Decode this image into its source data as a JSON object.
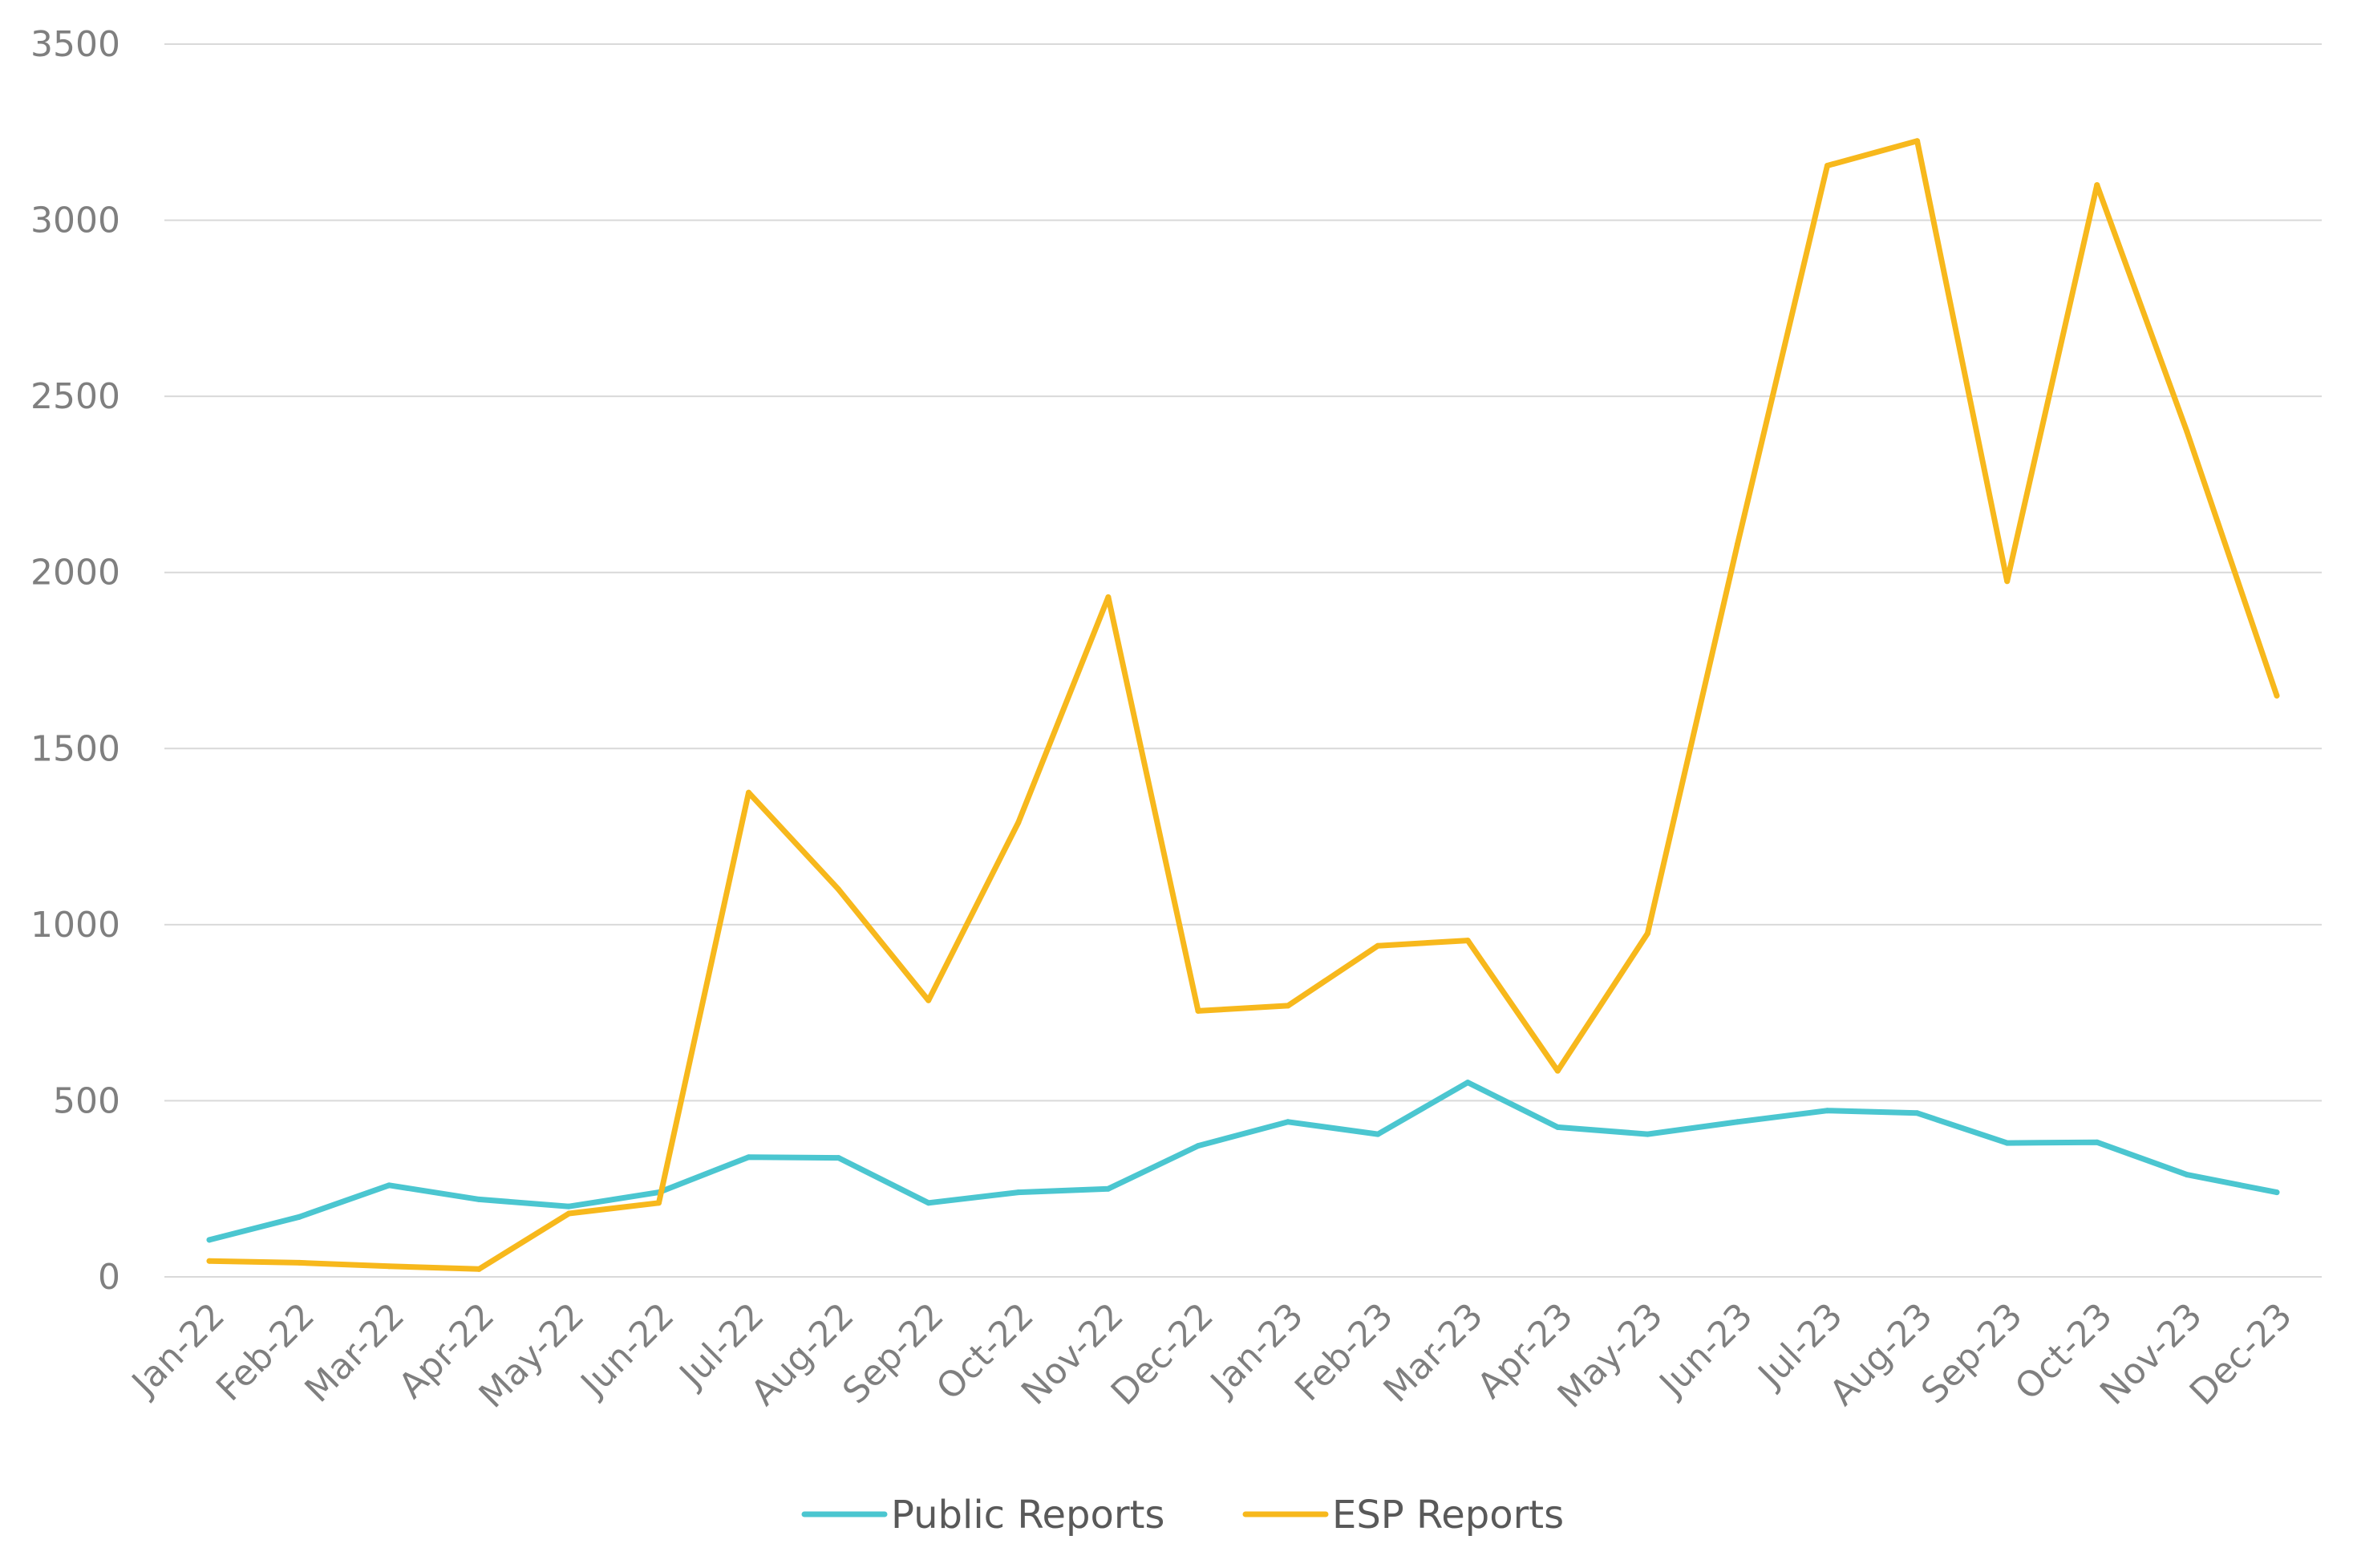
{
  "chart_data": {
    "type": "line",
    "title": "",
    "xlabel": "",
    "ylabel": "",
    "ylim": [
      0,
      3500
    ],
    "yticks": [
      0,
      500,
      1000,
      1500,
      2000,
      2500,
      3000,
      3500
    ],
    "grid": true,
    "legend": "bottom",
    "categories": [
      "Jan-22",
      "Feb-22",
      "Mar-22",
      "Apr-22",
      "May-22",
      "Jun-22",
      "Jul-22",
      "Aug-22",
      "Sep-22",
      "Oct-22",
      "Nov-22",
      "Dec-22",
      "Jan-23",
      "Feb-23",
      "Mar-23",
      "Apr-23",
      "May-23",
      "Jun-23",
      "Jul-23",
      "Aug-23",
      "Sep-23",
      "Oct-23",
      "Nov-23",
      "Dec-23"
    ],
    "series": [
      {
        "name": "Public Reports",
        "color": "#4bc6d0",
        "values": [
          105,
          170,
          260,
          220,
          200,
          240,
          340,
          338,
          210,
          240,
          250,
          372,
          440,
          405,
          552,
          425,
          405,
          440,
          472,
          465,
          380,
          382,
          290,
          240
        ]
      },
      {
        "name": "ESP Reports",
        "color": "#f7b81c",
        "values": [
          45,
          40,
          30,
          22,
          180,
          210,
          1375,
          1100,
          785,
          1290,
          1930,
          755,
          770,
          940,
          955,
          585,
          975,
          2080,
          3155,
          3225,
          1975,
          3100,
          2400,
          1650
        ]
      }
    ]
  }
}
